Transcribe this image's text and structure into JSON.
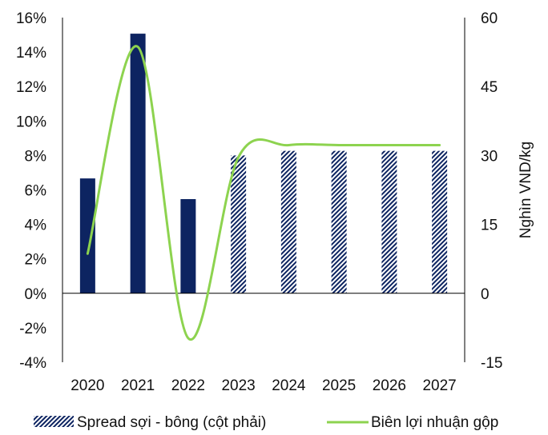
{
  "chart_data": {
    "type": "bar+line",
    "categories": [
      "2020",
      "2021",
      "2022",
      "2023",
      "2024",
      "2025",
      "2026",
      "2027"
    ],
    "series": [
      {
        "name": "Spread sợi - bông (cột phải)",
        "type": "bar",
        "axis": "right",
        "values": [
          25,
          56.5,
          20.5,
          30,
          31,
          31,
          31,
          31
        ],
        "forecast_from_index": 3,
        "color": "#0d2461",
        "forecast_pattern": "diagonal-hatch"
      },
      {
        "name": "Biên lợi nhuận gộp",
        "type": "line",
        "axis": "left",
        "values": [
          2.3,
          14.3,
          -2.6,
          7.9,
          8.6,
          8.6,
          8.6,
          8.6
        ],
        "color": "#8dd34f",
        "smooth": true
      }
    ],
    "y_left": {
      "min": -4,
      "max": 16,
      "step": 2,
      "ticks": [
        "-4%",
        "-2%",
        "0%",
        "2%",
        "4%",
        "6%",
        "8%",
        "10%",
        "12%",
        "14%",
        "16%"
      ]
    },
    "y_right": {
      "min": -15,
      "max": 60,
      "step": 15,
      "ticks": [
        "-15",
        "0",
        "15",
        "30",
        "45",
        "60"
      ],
      "label": "Nghìn VND/kg"
    },
    "legend": {
      "position": "bottom"
    },
    "grid": false
  }
}
